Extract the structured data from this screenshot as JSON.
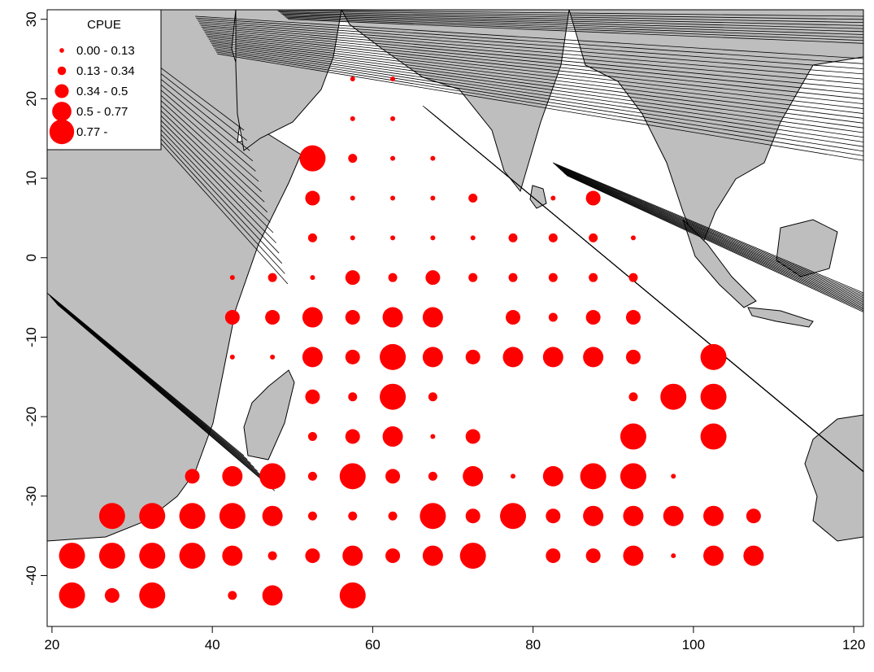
{
  "chart_data": {
    "type": "scatter",
    "title": "",
    "xlabel": "",
    "ylabel": "",
    "xlim": [
      19.4,
      121.2
    ],
    "ylim": [
      -46.4,
      31.2
    ],
    "x_ticks": [
      20,
      40,
      60,
      80,
      100,
      120
    ],
    "y_ticks": [
      -40,
      -30,
      -20,
      -10,
      0,
      10,
      20,
      30
    ],
    "x_tick_labels": [
      "20",
      "40",
      "60",
      "80",
      "100",
      "120"
    ],
    "y_tick_labels": [
      "-40",
      "-30",
      "-20",
      "-10",
      "0",
      "10",
      "20",
      "30"
    ],
    "point_color": "#ff0000",
    "land_color": "#bebebe",
    "legend": {
      "title": "CPUE",
      "placement": "top-left",
      "classes": [
        "0.00 - 0.13",
        "0.13 - 0.34",
        "0.34 - 0.5",
        "0.5 - 0.77",
        "0.77 -"
      ]
    },
    "points": [
      {
        "lon": 57.5,
        "lat": 22.5,
        "c": 1
      },
      {
        "lon": 62.5,
        "lat": 22.5,
        "c": 1
      },
      {
        "lon": 57.5,
        "lat": 17.5,
        "c": 1
      },
      {
        "lon": 62.5,
        "lat": 17.5,
        "c": 1
      },
      {
        "lon": 52.5,
        "lat": 12.5,
        "c": 5
      },
      {
        "lon": 57.5,
        "lat": 12.5,
        "c": 2
      },
      {
        "lon": 62.5,
        "lat": 12.5,
        "c": 1
      },
      {
        "lon": 67.5,
        "lat": 12.5,
        "c": 1
      },
      {
        "lon": 52.5,
        "lat": 7.5,
        "c": 3
      },
      {
        "lon": 57.5,
        "lat": 7.5,
        "c": 1
      },
      {
        "lon": 62.5,
        "lat": 7.5,
        "c": 1
      },
      {
        "lon": 67.5,
        "lat": 7.5,
        "c": 1
      },
      {
        "lon": 72.5,
        "lat": 7.5,
        "c": 2
      },
      {
        "lon": 82.5,
        "lat": 7.5,
        "c": 1
      },
      {
        "lon": 87.5,
        "lat": 7.5,
        "c": 3
      },
      {
        "lon": 52.5,
        "lat": 2.5,
        "c": 2
      },
      {
        "lon": 57.5,
        "lat": 2.5,
        "c": 1
      },
      {
        "lon": 62.5,
        "lat": 2.5,
        "c": 1
      },
      {
        "lon": 67.5,
        "lat": 2.5,
        "c": 1
      },
      {
        "lon": 72.5,
        "lat": 2.5,
        "c": 1
      },
      {
        "lon": 77.5,
        "lat": 2.5,
        "c": 2
      },
      {
        "lon": 82.5,
        "lat": 2.5,
        "c": 2
      },
      {
        "lon": 87.5,
        "lat": 2.5,
        "c": 2
      },
      {
        "lon": 92.5,
        "lat": 2.5,
        "c": 1
      },
      {
        "lon": 42.5,
        "lat": -2.5,
        "c": 1
      },
      {
        "lon": 47.5,
        "lat": -2.5,
        "c": 2
      },
      {
        "lon": 52.5,
        "lat": -2.5,
        "c": 1
      },
      {
        "lon": 57.5,
        "lat": -2.5,
        "c": 3
      },
      {
        "lon": 62.5,
        "lat": -2.5,
        "c": 2
      },
      {
        "lon": 67.5,
        "lat": -2.5,
        "c": 3
      },
      {
        "lon": 72.5,
        "lat": -2.5,
        "c": 2
      },
      {
        "lon": 77.5,
        "lat": -2.5,
        "c": 2
      },
      {
        "lon": 82.5,
        "lat": -2.5,
        "c": 2
      },
      {
        "lon": 87.5,
        "lat": -2.5,
        "c": 2
      },
      {
        "lon": 92.5,
        "lat": -2.5,
        "c": 2
      },
      {
        "lon": 42.5,
        "lat": -7.5,
        "c": 3
      },
      {
        "lon": 47.5,
        "lat": -7.5,
        "c": 3
      },
      {
        "lon": 52.5,
        "lat": -7.5,
        "c": 4
      },
      {
        "lon": 57.5,
        "lat": -7.5,
        "c": 3
      },
      {
        "lon": 62.5,
        "lat": -7.5,
        "c": 4
      },
      {
        "lon": 67.5,
        "lat": -7.5,
        "c": 4
      },
      {
        "lon": 77.5,
        "lat": -7.5,
        "c": 3
      },
      {
        "lon": 82.5,
        "lat": -7.5,
        "c": 2
      },
      {
        "lon": 87.5,
        "lat": -7.5,
        "c": 3
      },
      {
        "lon": 92.5,
        "lat": -7.5,
        "c": 3
      },
      {
        "lon": 42.5,
        "lat": -12.5,
        "c": 1
      },
      {
        "lon": 47.5,
        "lat": -12.5,
        "c": 1
      },
      {
        "lon": 52.5,
        "lat": -12.5,
        "c": 4
      },
      {
        "lon": 57.5,
        "lat": -12.5,
        "c": 3
      },
      {
        "lon": 62.5,
        "lat": -12.5,
        "c": 5
      },
      {
        "lon": 67.5,
        "lat": -12.5,
        "c": 4
      },
      {
        "lon": 72.5,
        "lat": -12.5,
        "c": 3
      },
      {
        "lon": 77.5,
        "lat": -12.5,
        "c": 4
      },
      {
        "lon": 82.5,
        "lat": -12.5,
        "c": 4
      },
      {
        "lon": 87.5,
        "lat": -12.5,
        "c": 4
      },
      {
        "lon": 92.5,
        "lat": -12.5,
        "c": 3
      },
      {
        "lon": 102.5,
        "lat": -12.5,
        "c": 5
      },
      {
        "lon": 52.5,
        "lat": -17.5,
        "c": 3
      },
      {
        "lon": 57.5,
        "lat": -17.5,
        "c": 2
      },
      {
        "lon": 62.5,
        "lat": -17.5,
        "c": 5
      },
      {
        "lon": 67.5,
        "lat": -17.5,
        "c": 2
      },
      {
        "lon": 92.5,
        "lat": -17.5,
        "c": 2
      },
      {
        "lon": 97.5,
        "lat": -17.5,
        "c": 5
      },
      {
        "lon": 102.5,
        "lat": -17.5,
        "c": 5
      },
      {
        "lon": 52.5,
        "lat": -22.5,
        "c": 2
      },
      {
        "lon": 57.5,
        "lat": -22.5,
        "c": 3
      },
      {
        "lon": 62.5,
        "lat": -22.5,
        "c": 4
      },
      {
        "lon": 67.5,
        "lat": -22.5,
        "c": 1
      },
      {
        "lon": 72.5,
        "lat": -22.5,
        "c": 3
      },
      {
        "lon": 92.5,
        "lat": -22.5,
        "c": 5
      },
      {
        "lon": 102.5,
        "lat": -22.5,
        "c": 5
      },
      {
        "lon": 37.5,
        "lat": -27.5,
        "c": 3
      },
      {
        "lon": 42.5,
        "lat": -27.5,
        "c": 4
      },
      {
        "lon": 47.5,
        "lat": -27.5,
        "c": 5
      },
      {
        "lon": 52.5,
        "lat": -27.5,
        "c": 2
      },
      {
        "lon": 57.5,
        "lat": -27.5,
        "c": 5
      },
      {
        "lon": 62.5,
        "lat": -27.5,
        "c": 3
      },
      {
        "lon": 67.5,
        "lat": -27.5,
        "c": 2
      },
      {
        "lon": 72.5,
        "lat": -27.5,
        "c": 4
      },
      {
        "lon": 77.5,
        "lat": -27.5,
        "c": 1
      },
      {
        "lon": 82.5,
        "lat": -27.5,
        "c": 4
      },
      {
        "lon": 87.5,
        "lat": -27.5,
        "c": 5
      },
      {
        "lon": 92.5,
        "lat": -27.5,
        "c": 5
      },
      {
        "lon": 97.5,
        "lat": -27.5,
        "c": 1
      },
      {
        "lon": 27.5,
        "lat": -32.5,
        "c": 5
      },
      {
        "lon": 32.5,
        "lat": -32.5,
        "c": 5
      },
      {
        "lon": 37.5,
        "lat": -32.5,
        "c": 5
      },
      {
        "lon": 42.5,
        "lat": -32.5,
        "c": 5
      },
      {
        "lon": 47.5,
        "lat": -32.5,
        "c": 4
      },
      {
        "lon": 52.5,
        "lat": -32.5,
        "c": 2
      },
      {
        "lon": 57.5,
        "lat": -32.5,
        "c": 2
      },
      {
        "lon": 62.5,
        "lat": -32.5,
        "c": 2
      },
      {
        "lon": 67.5,
        "lat": -32.5,
        "c": 5
      },
      {
        "lon": 72.5,
        "lat": -32.5,
        "c": 3
      },
      {
        "lon": 77.5,
        "lat": -32.5,
        "c": 5
      },
      {
        "lon": 82.5,
        "lat": -32.5,
        "c": 3
      },
      {
        "lon": 87.5,
        "lat": -32.5,
        "c": 4
      },
      {
        "lon": 92.5,
        "lat": -32.5,
        "c": 4
      },
      {
        "lon": 97.5,
        "lat": -32.5,
        "c": 4
      },
      {
        "lon": 102.5,
        "lat": -32.5,
        "c": 4
      },
      {
        "lon": 107.5,
        "lat": -32.5,
        "c": 3
      },
      {
        "lon": 22.5,
        "lat": -37.5,
        "c": 5
      },
      {
        "lon": 27.5,
        "lat": -37.5,
        "c": 5
      },
      {
        "lon": 32.5,
        "lat": -37.5,
        "c": 5
      },
      {
        "lon": 37.5,
        "lat": -37.5,
        "c": 5
      },
      {
        "lon": 42.5,
        "lat": -37.5,
        "c": 4
      },
      {
        "lon": 47.5,
        "lat": -37.5,
        "c": 2
      },
      {
        "lon": 52.5,
        "lat": -37.5,
        "c": 3
      },
      {
        "lon": 57.5,
        "lat": -37.5,
        "c": 4
      },
      {
        "lon": 62.5,
        "lat": -37.5,
        "c": 3
      },
      {
        "lon": 67.5,
        "lat": -37.5,
        "c": 4
      },
      {
        "lon": 72.5,
        "lat": -37.5,
        "c": 5
      },
      {
        "lon": 82.5,
        "lat": -37.5,
        "c": 3
      },
      {
        "lon": 87.5,
        "lat": -37.5,
        "c": 3
      },
      {
        "lon": 92.5,
        "lat": -37.5,
        "c": 4
      },
      {
        "lon": 97.5,
        "lat": -37.5,
        "c": 1
      },
      {
        "lon": 102.5,
        "lat": -37.5,
        "c": 4
      },
      {
        "lon": 107.5,
        "lat": -37.5,
        "c": 4
      },
      {
        "lon": 22.5,
        "lat": -42.5,
        "c": 5
      },
      {
        "lon": 27.5,
        "lat": -42.5,
        "c": 3
      },
      {
        "lon": 32.5,
        "lat": -42.5,
        "c": 5
      },
      {
        "lon": 42.5,
        "lat": -42.5,
        "c": 2
      },
      {
        "lon": 47.5,
        "lat": -42.5,
        "c": 4
      },
      {
        "lon": 57.5,
        "lat": -42.5,
        "c": 5
      }
    ]
  }
}
